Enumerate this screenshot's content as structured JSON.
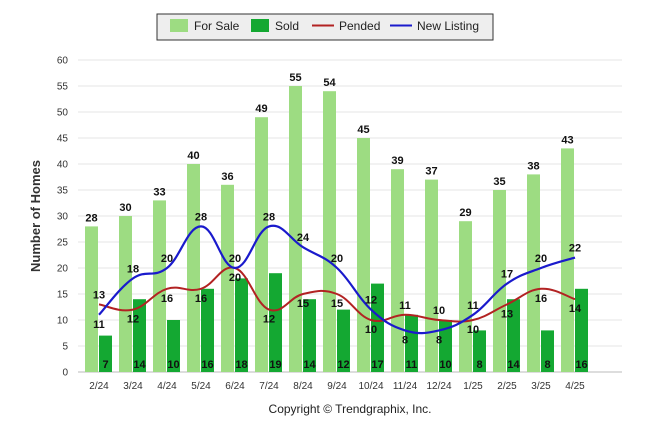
{
  "chart_data": {
    "type": "bar",
    "categories": [
      "2/24",
      "3/24",
      "4/24",
      "5/24",
      "6/24",
      "7/24",
      "8/24",
      "9/24",
      "10/24",
      "11/24",
      "12/24",
      "1/25",
      "2/25",
      "3/25",
      "4/25"
    ],
    "series": [
      {
        "name": "For Sale",
        "type": "bar",
        "color": "#9ddc82",
        "values": [
          28,
          30,
          33,
          40,
          36,
          49,
          55,
          54,
          45,
          39,
          37,
          29,
          35,
          38,
          43
        ]
      },
      {
        "name": "Sold",
        "type": "bar",
        "color": "#14a832",
        "values": [
          7,
          14,
          10,
          16,
          18,
          19,
          14,
          12,
          17,
          11,
          10,
          8,
          14,
          8,
          16
        ]
      },
      {
        "name": "Pended",
        "type": "line",
        "color": "#b22222",
        "values": [
          13,
          12,
          16,
          16,
          20,
          12,
          15,
          15,
          10,
          11,
          10,
          10,
          13,
          16,
          14
        ]
      },
      {
        "name": "New Listing",
        "type": "line",
        "color": "#1a1acc",
        "values": [
          11,
          18,
          20,
          28,
          20,
          28,
          24,
          20,
          12,
          8,
          8,
          11,
          17,
          20,
          22
        ]
      }
    ],
    "ylabel": "Number of Homes",
    "xlabel": "",
    "ylim": [
      0,
      60
    ],
    "yticks": [
      0,
      5,
      10,
      15,
      20,
      25,
      30,
      35,
      40,
      45,
      50,
      55,
      60
    ],
    "grid": true,
    "legend_position": "top-center"
  },
  "copyright": "Copyright © Trendgraphix, Inc."
}
